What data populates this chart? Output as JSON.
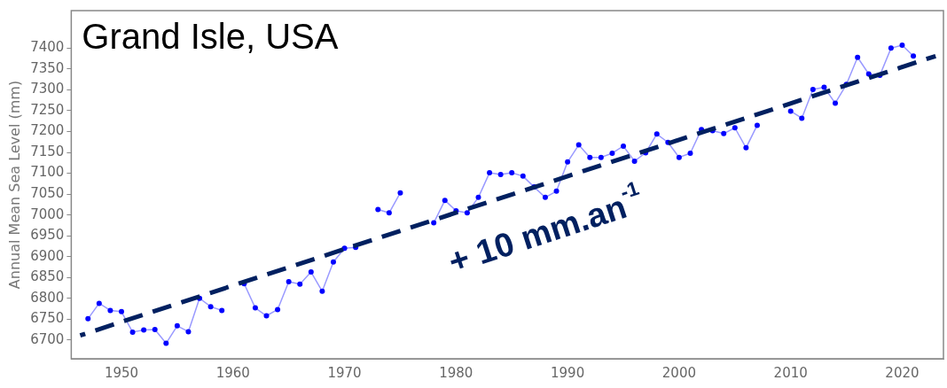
{
  "chart_data": {
    "type": "line",
    "title": "Grand Isle, USA",
    "ylabel": "Annual Mean Sea Level (mm)",
    "x": [
      1947,
      1948,
      1949,
      1950,
      1951,
      1952,
      1953,
      1954,
      1955,
      1956,
      1957,
      1958,
      1959,
      1960,
      1961,
      1962,
      1963,
      1964,
      1965,
      1966,
      1967,
      1968,
      1969,
      1970,
      1971,
      1972,
      1973,
      1974,
      1975,
      1976,
      1977,
      1978,
      1979,
      1980,
      1981,
      1982,
      1983,
      1984,
      1985,
      1986,
      1987,
      1988,
      1989,
      1990,
      1991,
      1992,
      1993,
      1994,
      1995,
      1996,
      1997,
      1998,
      1999,
      2000,
      2001,
      2002,
      2003,
      2004,
      2005,
      2006,
      2007,
      2008,
      2009,
      2010,
      2011,
      2012,
      2013,
      2014,
      2015,
      2016,
      2017,
      2018,
      2019,
      2020,
      2021
    ],
    "series": [
      {
        "color": "#0000ff",
        "marker": "circle",
        "values": [
          6751,
          6788,
          6771,
          6768,
          6719,
          6724,
          6725,
          6692,
          6734,
          6720,
          6800,
          6780,
          6771,
          null,
          6835,
          6777,
          6758,
          6773,
          6840,
          6834,
          6863,
          6817,
          6887,
          6920,
          6922,
          null,
          7013,
          7005,
          7053,
          null,
          null,
          6981,
          7035,
          7010,
          7005,
          7042,
          7101,
          7097,
          7101,
          7093,
          7067,
          7042,
          7057,
          7127,
          7168,
          7138,
          7138,
          7148,
          7165,
          7129,
          7149,
          7194,
          7174,
          7138,
          7148,
          7205,
          7202,
          7195,
          7209,
          7161,
          7215,
          null,
          null,
          7249,
          7232,
          7301,
          7306,
          7268,
          7313,
          7378,
          7338,
          7335,
          7400,
          7407,
          7381
        ]
      },
      {
        "type": "line",
        "color": "#002060",
        "marker": "none",
        "line_style": "dashed",
        "x": [
          1946.3,
          2023
        ],
        "values": [
          6711,
          7381
        ]
      }
    ],
    "xlim": [
      1945.5,
      2023.7
    ],
    "ylim": [
      6655,
      7490
    ],
    "xticks": [
      1950,
      1960,
      1970,
      1980,
      1990,
      2000,
      2010,
      2020
    ],
    "yticks": [
      6700,
      6750,
      6800,
      6850,
      6900,
      6950,
      7000,
      7050,
      7100,
      7150,
      7200,
      7250,
      7300,
      7350,
      7400
    ],
    "grid": false,
    "legend": false,
    "annotations": [
      "+ 10 mm.an$^{-1}$"
    ]
  }
}
